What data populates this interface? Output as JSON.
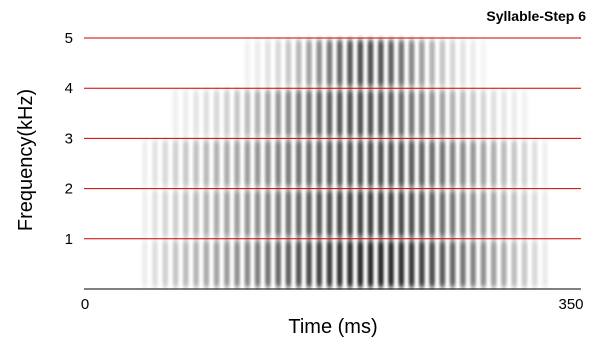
{
  "chart_data": {
    "type": "heatmap",
    "title": "Syllable-Step 6",
    "xlabel": "Time (ms)",
    "ylabel": "Frequency(kHz)",
    "xlim": [
      0,
      350
    ],
    "ylim": [
      0,
      5
    ],
    "x_tick_labels": [
      "0",
      "350"
    ],
    "y_tick_labels": [
      "1",
      "2",
      "3",
      "4",
      "5"
    ],
    "y_ticks": [
      1,
      2,
      3,
      4,
      5
    ],
    "grid": true,
    "gridline_color": "#cc0000",
    "colormap": "grayscale",
    "signal_time_range": [
      40,
      335
    ],
    "formants_khz": [
      0.5,
      1.5,
      2.5,
      3.5,
      4.5
    ],
    "pitch_periods": 40
  }
}
